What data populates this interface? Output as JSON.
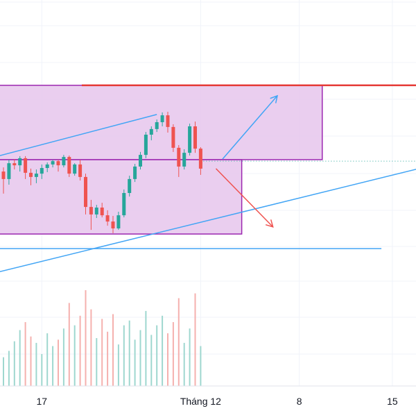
{
  "chart_data": {
    "type": "candlestick",
    "title": "",
    "xlabel": "",
    "ylabel": "",
    "x_ticks": [
      {
        "label": "17",
        "bar": 7
      },
      {
        "label": "Tháng 12",
        "bar": 36
      },
      {
        "label": "8",
        "bar": 54
      },
      {
        "label": "15",
        "bar": 71
      }
    ],
    "price_range": [
      0,
      100
    ],
    "colors": {
      "up": "#26a69a",
      "down": "#ef5350",
      "up_volume": "#9ed7cf",
      "down_volume": "#f5b0ae",
      "zone_fill": "#e6c6ec",
      "zone_stroke": "#9c27b0",
      "resistance": "#e53935",
      "trendline": "#42a5f5",
      "arrow_up": "#42a5f5",
      "arrow_down": "#ef5350",
      "grid": "#f0f3fa",
      "axis_text": "#131722",
      "reference": "#26a69a"
    },
    "candles": [
      {
        "o": 49.3,
        "h": 51.3,
        "l": 38.7,
        "c": 45.7
      },
      {
        "o": 45.7,
        "h": 55.0,
        "l": 43.0,
        "c": 53.3
      },
      {
        "o": 53.3,
        "h": 55.3,
        "l": 50.3,
        "c": 52.3
      },
      {
        "o": 52.3,
        "h": 56.7,
        "l": 49.3,
        "c": 55.7
      },
      {
        "o": 55.7,
        "h": 56.7,
        "l": 45.7,
        "c": 48.7
      },
      {
        "o": 48.7,
        "h": 50.7,
        "l": 42.7,
        "c": 46.7
      },
      {
        "o": 46.7,
        "h": 50.3,
        "l": 43.7,
        "c": 48.3
      },
      {
        "o": 48.3,
        "h": 52.7,
        "l": 45.7,
        "c": 51.0
      },
      {
        "o": 51.0,
        "h": 53.7,
        "l": 49.0,
        "c": 52.7
      },
      {
        "o": 52.7,
        "h": 55.0,
        "l": 51.3,
        "c": 54.3
      },
      {
        "o": 54.3,
        "h": 55.0,
        "l": 49.3,
        "c": 52.3
      },
      {
        "o": 52.3,
        "h": 57.3,
        "l": 51.3,
        "c": 56.3
      },
      {
        "o": 56.3,
        "h": 57.0,
        "l": 46.7,
        "c": 48.3
      },
      {
        "o": 48.3,
        "h": 53.3,
        "l": 47.3,
        "c": 52.7
      },
      {
        "o": 52.7,
        "h": 55.0,
        "l": 45.0,
        "c": 46.7
      },
      {
        "o": 46.7,
        "h": 48.3,
        "l": 28.7,
        "c": 32.3
      },
      {
        "o": 32.3,
        "h": 35.7,
        "l": 21.3,
        "c": 28.7
      },
      {
        "o": 28.7,
        "h": 33.3,
        "l": 27.0,
        "c": 32.0
      },
      {
        "o": 32.0,
        "h": 34.3,
        "l": 27.3,
        "c": 28.3
      },
      {
        "o": 28.3,
        "h": 30.7,
        "l": 23.3,
        "c": 25.3
      },
      {
        "o": 25.3,
        "h": 28.0,
        "l": 19.7,
        "c": 22.0
      },
      {
        "o": 22.0,
        "h": 30.0,
        "l": 21.3,
        "c": 28.3
      },
      {
        "o": 28.3,
        "h": 40.7,
        "l": 27.3,
        "c": 39.0
      },
      {
        "o": 39.0,
        "h": 47.3,
        "l": 37.3,
        "c": 45.7
      },
      {
        "o": 45.7,
        "h": 53.0,
        "l": 44.3,
        "c": 51.7
      },
      {
        "o": 51.7,
        "h": 58.7,
        "l": 50.3,
        "c": 57.3
      },
      {
        "o": 57.3,
        "h": 68.3,
        "l": 55.7,
        "c": 67.0
      },
      {
        "o": 67.0,
        "h": 71.0,
        "l": 64.3,
        "c": 69.7
      },
      {
        "o": 69.7,
        "h": 74.3,
        "l": 68.3,
        "c": 73.0
      },
      {
        "o": 73.0,
        "h": 77.7,
        "l": 71.0,
        "c": 76.3
      },
      {
        "o": 76.3,
        "h": 78.0,
        "l": 68.0,
        "c": 70.7
      },
      {
        "o": 70.7,
        "h": 72.0,
        "l": 58.7,
        "c": 60.7
      },
      {
        "o": 60.7,
        "h": 62.0,
        "l": 46.7,
        "c": 51.7
      },
      {
        "o": 51.7,
        "h": 60.0,
        "l": 50.3,
        "c": 58.3
      },
      {
        "o": 58.3,
        "h": 72.3,
        "l": 57.0,
        "c": 71.0
      },
      {
        "o": 71.0,
        "h": 73.3,
        "l": 58.3,
        "c": 60.3
      },
      {
        "o": 60.3,
        "h": 61.0,
        "l": 47.7,
        "c": 50.7
      }
    ],
    "volume": [
      {
        "v": 18,
        "d": "up"
      },
      {
        "v": 22,
        "d": "up"
      },
      {
        "v": 28,
        "d": "up"
      },
      {
        "v": 35,
        "d": "up"
      },
      {
        "v": 40,
        "d": "down"
      },
      {
        "v": 31,
        "d": "down"
      },
      {
        "v": 27,
        "d": "up"
      },
      {
        "v": 20,
        "d": "up"
      },
      {
        "v": 33,
        "d": "up"
      },
      {
        "v": 25,
        "d": "up"
      },
      {
        "v": 29,
        "d": "down"
      },
      {
        "v": 36,
        "d": "up"
      },
      {
        "v": 52,
        "d": "down"
      },
      {
        "v": 38,
        "d": "up"
      },
      {
        "v": 44,
        "d": "down"
      },
      {
        "v": 60,
        "d": "down"
      },
      {
        "v": 48,
        "d": "down"
      },
      {
        "v": 30,
        "d": "up"
      },
      {
        "v": 42,
        "d": "down"
      },
      {
        "v": 34,
        "d": "down"
      },
      {
        "v": 45,
        "d": "down"
      },
      {
        "v": 26,
        "d": "up"
      },
      {
        "v": 38,
        "d": "up"
      },
      {
        "v": 41,
        "d": "up"
      },
      {
        "v": 29,
        "d": "up"
      },
      {
        "v": 35,
        "d": "up"
      },
      {
        "v": 47,
        "d": "up"
      },
      {
        "v": 32,
        "d": "up"
      },
      {
        "v": 38,
        "d": "up"
      },
      {
        "v": 44,
        "d": "up"
      },
      {
        "v": 33,
        "d": "down"
      },
      {
        "v": 40,
        "d": "down"
      },
      {
        "v": 55,
        "d": "down"
      },
      {
        "v": 27,
        "d": "up"
      },
      {
        "v": 36,
        "d": "up"
      },
      {
        "v": 58,
        "d": "down"
      },
      {
        "v": 25,
        "d": "up"
      }
    ],
    "annotations": {
      "resistance_level": 90.7,
      "upper_zone": {
        "bar_start": -5,
        "bar_end": 58.2,
        "top": 90.7,
        "bottom": 55.0
      },
      "lower_zone": {
        "bar_start": -5,
        "bar_end": 43.5,
        "top": 55.0,
        "bottom": 19.3
      },
      "reference_price": 54.3,
      "support_level": 12.0,
      "channel_top": {
        "from": {
          "bar": -1,
          "price": 56.7
        },
        "to": {
          "bar": 28,
          "price": 76.7
        }
      },
      "rising_trendline": {
        "from": {
          "bar": -1,
          "price": 1.0
        },
        "to": {
          "bar": 82,
          "price": 54.7
        }
      },
      "horizontal_line": {
        "from_bar": -1,
        "to_bar": 69,
        "price": 12.3
      },
      "arrow_up": {
        "from": {
          "bar": 40,
          "price": 55.3
        },
        "to": {
          "bar": 50,
          "price": 85.7
        }
      },
      "arrow_down": {
        "from": {
          "bar": 38.8,
          "price": 50.7
        },
        "to": {
          "bar": 49.2,
          "price": 22.7
        }
      }
    }
  }
}
